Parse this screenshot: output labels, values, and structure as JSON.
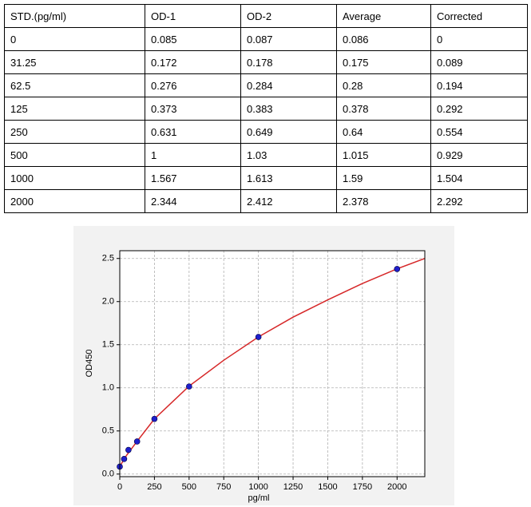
{
  "table": {
    "header": [
      "STD.(pg/ml)",
      "OD-1",
      "OD-2",
      "Average",
      "Corrected"
    ],
    "rows": [
      [
        "0",
        "0.085",
        "0.087",
        "0.086",
        "0"
      ],
      [
        "31.25",
        "0.172",
        "0.178",
        "0.175",
        "0.089"
      ],
      [
        "62.5",
        "0.276",
        "0.284",
        "0.28",
        "0.194"
      ],
      [
        "125",
        "0.373",
        "0.383",
        "0.378",
        "0.292"
      ],
      [
        "250",
        "0.631",
        "0.649",
        "0.64",
        "0.554"
      ],
      [
        "500",
        "1",
        "1.03",
        "1.015",
        "0.929"
      ],
      [
        "1000",
        "1.567",
        "1.613",
        "1.59",
        "1.504"
      ],
      [
        "2000",
        "2.344",
        "2.412",
        "2.378",
        "2.292"
      ]
    ]
  },
  "chart_data": {
    "type": "scatter",
    "xlabel": "pg/ml",
    "ylabel": "OD450",
    "points": {
      "color": "#1f1fcc",
      "x": [
        0,
        31.25,
        62.5,
        125,
        250,
        500,
        1000,
        2000
      ],
      "values": [
        0.086,
        0.175,
        0.28,
        0.378,
        0.64,
        1.015,
        1.59,
        2.378
      ]
    },
    "curve": {
      "color": "#d62728",
      "x": [
        0,
        50,
        125,
        250,
        500,
        750,
        1000,
        1250,
        1500,
        1750,
        2000,
        2200
      ],
      "values": [
        0.09,
        0.22,
        0.38,
        0.64,
        1.02,
        1.32,
        1.59,
        1.82,
        2.02,
        2.21,
        2.38,
        2.5
      ]
    },
    "xlim": [
      0,
      2200
    ],
    "xticks": [
      0,
      250,
      500,
      750,
      1000,
      1250,
      1500,
      1750,
      2000
    ],
    "ylim": [
      -0.03,
      2.59
    ],
    "yticks": [
      {
        "value": 0,
        "label": "0.0"
      },
      0.5,
      {
        "value": 1,
        "label": "1.0"
      },
      1.5,
      {
        "value": 2,
        "label": "2.0"
      },
      2.5
    ],
    "grid": true
  }
}
